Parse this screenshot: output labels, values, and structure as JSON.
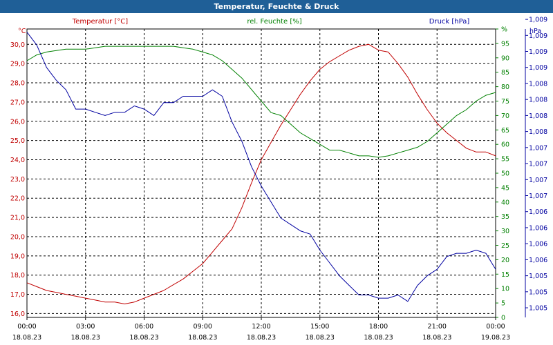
{
  "window": {
    "title": "Temperatur, Feuchte & Druck"
  },
  "colors": {
    "temperature": "#c00000",
    "humidity": "#008000",
    "pressure": "#0000a0",
    "titlebar": "#1f5f97"
  },
  "chart_data": {
    "type": "line",
    "title": "Temperatur, Feuchte & Druck",
    "grid": true,
    "x_ticks": [
      {
        "time": "00:00",
        "date": "18.08.23"
      },
      {
        "time": "03:00",
        "date": "18.08.23"
      },
      {
        "time": "06:00",
        "date": "18.08.23"
      },
      {
        "time": "09:00",
        "date": "18.08.23"
      },
      {
        "time": "12:00",
        "date": "18.08.23"
      },
      {
        "time": "15:00",
        "date": "18.08.23"
      },
      {
        "time": "18:00",
        "date": "18.08.23"
      },
      {
        "time": "21:00",
        "date": "18.08.23"
      },
      {
        "time": "00:00",
        "date": "19.08.23"
      }
    ],
    "x_hours": [
      0,
      0.5,
      1,
      1.5,
      2,
      2.5,
      3,
      3.5,
      4,
      4.5,
      5,
      5.5,
      6,
      6.5,
      7,
      7.5,
      8,
      8.5,
      9,
      9.5,
      10,
      10.5,
      11,
      11.5,
      12,
      12.5,
      13,
      13.5,
      14,
      14.5,
      15,
      15.5,
      16,
      16.5,
      17,
      17.5,
      18,
      18.5,
      19,
      19.5,
      20,
      20.5,
      21,
      21.5,
      22,
      22.5,
      23,
      23.5,
      24
    ],
    "axes": {
      "temperature": {
        "unit_label": "°C",
        "ylim": [
          15.8,
          30.8
        ],
        "ticks": [
          "16,0",
          "17,0",
          "18,0",
          "19,0",
          "20,0",
          "21,0",
          "22,0",
          "23,0",
          "24,0",
          "25,0",
          "26,0",
          "27,0",
          "28,0",
          "29,0",
          "30,0"
        ],
        "tick_values": [
          16,
          17,
          18,
          19,
          20,
          21,
          22,
          23,
          24,
          25,
          26,
          27,
          28,
          29,
          30
        ]
      },
      "humidity": {
        "unit_label": "%",
        "ylim": [
          0,
          100
        ],
        "ticks": [
          "0",
          "5",
          "10",
          "15",
          "20",
          "25",
          "30",
          "35",
          "40",
          "45",
          "50",
          "55",
          "60",
          "65",
          "70",
          "75",
          "80",
          "85",
          "90",
          "95",
          "%"
        ],
        "tick_values": [
          0,
          5,
          10,
          15,
          20,
          25,
          30,
          35,
          40,
          45,
          50,
          55,
          60,
          65,
          70,
          75,
          80,
          85,
          90,
          95,
          100
        ]
      },
      "pressure": {
        "unit_label": "hPa",
        "ylim": [
          1004.85,
          1009.35
        ],
        "ticks": [
          "1,005",
          "1,005",
          "1,005",
          "1,006",
          "1,006",
          "1,006",
          "1,006",
          "1,007",
          "1,007",
          "1,007",
          "1,007",
          "1,008",
          "1,008",
          "1,008",
          "1,008",
          "1,009",
          "1,009",
          "1,009",
          "1,009"
        ],
        "tick_values": [
          1005.0,
          1005.25,
          1005.5,
          1005.75,
          1006.0,
          1006.25,
          1006.5,
          1006.75,
          1007.0,
          1007.25,
          1007.5,
          1007.75,
          1008.0,
          1008.25,
          1008.5,
          1008.75,
          1009.0,
          1009.25,
          1009.5
        ]
      }
    },
    "series": [
      {
        "name": "Temperatur [°C]",
        "axis": "temperature",
        "values": [
          17.6,
          17.4,
          17.2,
          17.1,
          17.0,
          16.9,
          16.8,
          16.7,
          16.6,
          16.6,
          16.5,
          16.6,
          16.8,
          17.0,
          17.2,
          17.5,
          17.8,
          18.2,
          18.6,
          19.2,
          19.8,
          20.4,
          21.5,
          22.8,
          24.0,
          24.9,
          25.8,
          26.6,
          27.4,
          28.1,
          28.7,
          29.1,
          29.4,
          29.7,
          29.9,
          30.0,
          29.7,
          29.6,
          29.0,
          28.3,
          27.4,
          26.6,
          25.9,
          25.4,
          25.0,
          24.6,
          24.4,
          24.4,
          24.2
        ]
      },
      {
        "name": "rel. Feuchte [%]",
        "axis": "humidity",
        "values": [
          89,
          91,
          92,
          92.5,
          93,
          93,
          93,
          93.5,
          94,
          94,
          94,
          94,
          94,
          94,
          94,
          94,
          93.5,
          93,
          92,
          91,
          89,
          86,
          83,
          79,
          75,
          71,
          70,
          67,
          64,
          62,
          60,
          58,
          58,
          57,
          56,
          56,
          55.5,
          56,
          57,
          58,
          59,
          61,
          64,
          67,
          70,
          72,
          75,
          77,
          78
        ]
      },
      {
        "name": "Druck [hPa]",
        "axis": "pressure",
        "values": [
          1009.3,
          1009.1,
          1008.75,
          1008.55,
          1008.4,
          1008.1,
          1008.1,
          1008.05,
          1008.0,
          1008.05,
          1008.05,
          1008.15,
          1008.1,
          1008.0,
          1008.2,
          1008.2,
          1008.3,
          1008.3,
          1008.3,
          1008.4,
          1008.3,
          1007.9,
          1007.6,
          1007.2,
          1006.9,
          1006.65,
          1006.4,
          1006.3,
          1006.2,
          1006.15,
          1005.9,
          1005.7,
          1005.5,
          1005.35,
          1005.2,
          1005.2,
          1005.15,
          1005.15,
          1005.2,
          1005.1,
          1005.35,
          1005.5,
          1005.6,
          1005.8,
          1005.85,
          1005.85,
          1005.9,
          1005.85,
          1005.6
        ]
      }
    ]
  }
}
